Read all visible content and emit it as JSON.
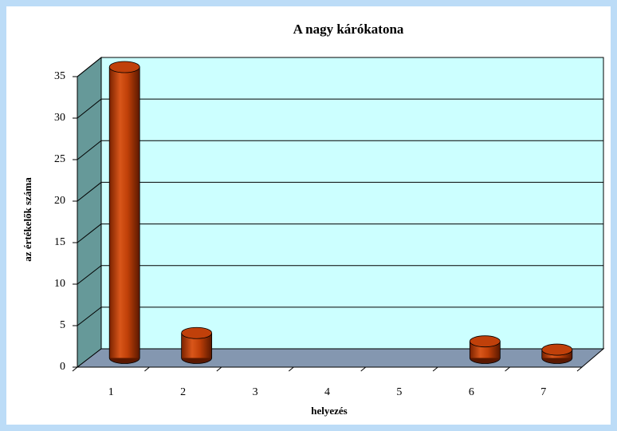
{
  "chart_data": {
    "type": "bar3d",
    "title": "A nagy kárókatona",
    "x_label": "helyezés",
    "y_label": "az értékelők száma",
    "categories": [
      "1",
      "2",
      "3",
      "4",
      "5",
      "6",
      "7"
    ],
    "values": [
      35,
      3,
      0,
      0,
      0,
      2,
      1
    ],
    "color": "#c0400a",
    "ylim": [
      0,
      35
    ],
    "yticks": [
      0,
      5,
      10,
      15,
      20,
      25,
      30,
      35
    ],
    "grid": true
  }
}
